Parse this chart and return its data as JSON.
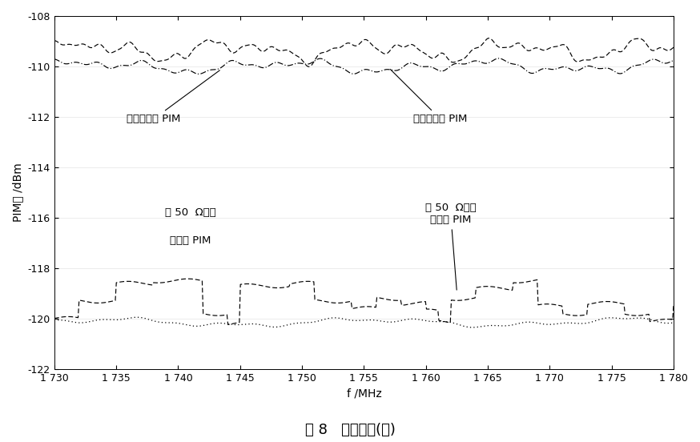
{
  "xlabel": "f /MHz",
  "ylabel": "PIM値 /dBm",
  "caption": "图 8   实验结果(二)",
  "xlim": [
    1730,
    1780
  ],
  "ylim": [
    -122,
    -108
  ],
  "yticks": [
    -122,
    -120,
    -118,
    -116,
    -114,
    -112,
    -110,
    -108
  ],
  "xticks": [
    1730,
    1735,
    1740,
    1745,
    1750,
    1755,
    1760,
    1765,
    1770,
    1775,
    1780
  ],
  "xtick_labels": [
    "1 730",
    "1 735",
    "1 740",
    "1 745",
    "1 750",
    "1 755",
    "1 760",
    "1 765",
    "1 770",
    "1 775",
    "1 780"
  ],
  "ann_open_calc": "开路计算的 PIM",
  "ann_open_meas": "开路测量的 PIM",
  "ann_50_calc_l1": "按 50  Ω负载",
  "ann_50_calc_l2": "计算的 PIM",
  "ann_50_meas_l1": "按 50  Ω负载",
  "ann_50_meas_l2": "测量的 PIM",
  "line_color": "#000000",
  "background_color": "#ffffff",
  "figsize": [
    8.74,
    5.52
  ],
  "dpi": 100
}
